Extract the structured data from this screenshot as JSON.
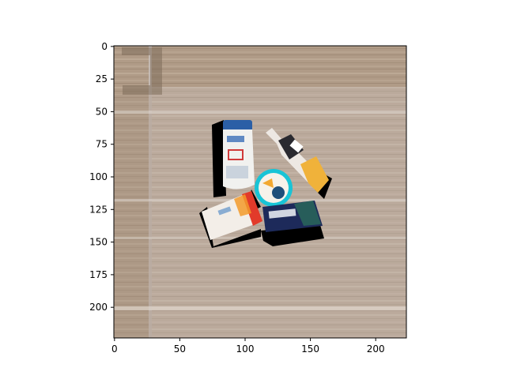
{
  "figure": {
    "image_description": "Top-down photo of a wooden table surface with several toiletry products grouped in the center: a white shampoo bottle with a blue cap, a small spray bottle with a yellow label, a round cyan-rimmed tin, a white-and-red squeeze tube, and a dark navy box.",
    "colors": {
      "wood_base": "#b09b87",
      "wood_light": "#c7b5a2",
      "wood_dark": "#8c7864",
      "light_panel": "#d5cfcf",
      "shadow": "#000000"
    },
    "image_extent": {
      "x": [
        0,
        224
      ],
      "y": [
        224,
        0
      ]
    },
    "axes": {
      "x_ticks": [
        {
          "value": 0,
          "label": "0"
        },
        {
          "value": 50,
          "label": "50"
        },
        {
          "value": 100,
          "label": "100"
        },
        {
          "value": 150,
          "label": "150"
        },
        {
          "value": 200,
          "label": "200"
        }
      ],
      "y_ticks": [
        {
          "value": 0,
          "label": "0"
        },
        {
          "value": 25,
          "label": "25"
        },
        {
          "value": 50,
          "label": "50"
        },
        {
          "value": 75,
          "label": "75"
        },
        {
          "value": 100,
          "label": "100"
        },
        {
          "value": 125,
          "label": "125"
        },
        {
          "value": 150,
          "label": "150"
        },
        {
          "value": 175,
          "label": "175"
        },
        {
          "value": 200,
          "label": "200"
        }
      ]
    },
    "products": [
      {
        "name": "shampoo-bottle",
        "colors": [
          "#f1f1ef",
          "#2b5fa6"
        ]
      },
      {
        "name": "spray-bottle",
        "colors": [
          "#ede8e3",
          "#f0b23a"
        ]
      },
      {
        "name": "round-tin",
        "colors": [
          "#18c4d6",
          "#f6f2ea"
        ]
      },
      {
        "name": "squeeze-tube",
        "colors": [
          "#f3eee8",
          "#e23a2a"
        ]
      },
      {
        "name": "dark-box",
        "colors": [
          "#1d2a5a",
          "#f1f5f8"
        ]
      }
    ]
  }
}
